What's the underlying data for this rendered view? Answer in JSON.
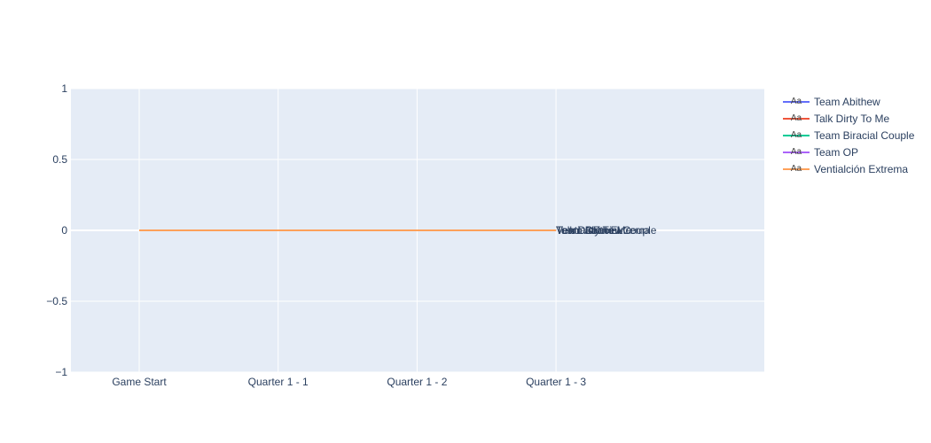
{
  "chart_data": {
    "type": "line",
    "title": "",
    "xlabel": "",
    "ylabel": "",
    "categories": [
      "Game Start",
      "Quarter 1 - 1",
      "Quarter 1 - 2",
      "Quarter 1 - 3"
    ],
    "ylim": [
      -1,
      1
    ],
    "yticks": [
      1,
      0.5,
      0,
      -0.5,
      -1
    ],
    "ytick_labels": [
      "1",
      "0.5",
      "0",
      "−0.5",
      "−1"
    ],
    "grid": true,
    "legend_placement": "top-right",
    "legend_marker_text": "Aa",
    "plot_background": "#e5ecf6",
    "series": [
      {
        "name": "Team Abithew",
        "values": [
          0,
          0,
          0,
          0
        ],
        "color": "#636efa",
        "end_label": "Team Abithew"
      },
      {
        "name": "Talk Dirty To Me",
        "values": [
          0,
          0,
          0,
          0
        ],
        "color": "#ef553b",
        "end_label": "Talk Dirty To Me"
      },
      {
        "name": "Team Biracial Couple",
        "values": [
          0,
          0,
          0,
          0
        ],
        "color": "#00cc96",
        "end_label": "Team Biracial Couple"
      },
      {
        "name": "Team OP",
        "values": [
          0,
          0,
          0,
          0
        ],
        "color": "#ab63fa",
        "end_label": "Team OP"
      },
      {
        "name": "Ventialción Extrema",
        "values": [
          0,
          0,
          0,
          0
        ],
        "color": "#ffa15a",
        "end_label": "Ventialción Extrema"
      }
    ]
  }
}
